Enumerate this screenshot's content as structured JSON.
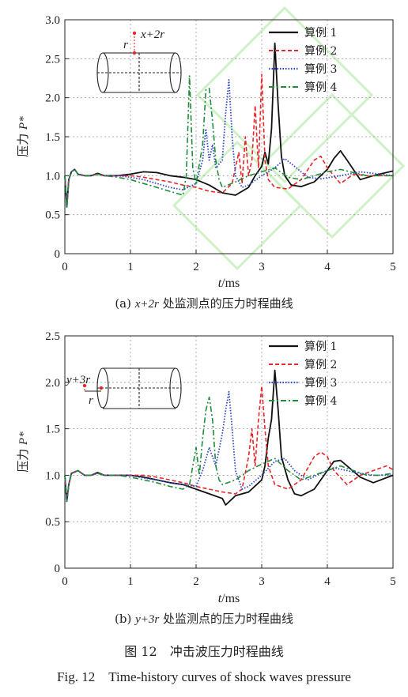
{
  "figure": {
    "caption_cn": "图 12　冲击波压力时程曲线",
    "caption_en": "Fig. 12　Time-history curves of shock waves pressure"
  },
  "colors": {
    "case1": "#111111",
    "case2": "#e8262b",
    "case3": "#2b47c8",
    "case4": "#1f8c3a",
    "watermark": "#c9f0c2"
  },
  "chart_data": [
    {
      "type": "line",
      "subtitle_prefix": "(a) ",
      "subtitle_var": "x+2r",
      "subtitle_rest": " 处监测点的压力时程曲线",
      "xlabel_var": "t",
      "xlabel_unit": "/ms",
      "ylabel_cn": "压力 ",
      "ylabel_var": "P*",
      "xlim": [
        0,
        5
      ],
      "ylim": [
        0,
        3
      ],
      "xticks": [
        0,
        1,
        2,
        3,
        4,
        5
      ],
      "yticks": [
        0,
        0.5,
        1.0,
        1.5,
        2.0,
        2.5,
        3.0
      ],
      "ytick_labels": [
        "0",
        "0.5",
        "1.0",
        "1.5",
        "2.0",
        "2.5",
        "3.0"
      ],
      "grid": true,
      "legend_position": "top-right",
      "inset_labels": {
        "point": "x+2r",
        "radius": "r"
      },
      "series": [
        {
          "name": "算例 1",
          "x": [
            0,
            0.03,
            0.06,
            0.1,
            0.15,
            0.2,
            0.3,
            0.4,
            0.5,
            0.6,
            0.8,
            1.0,
            1.2,
            1.4,
            1.6,
            1.8,
            2.0,
            2.2,
            2.4,
            2.6,
            2.8,
            2.9,
            3.0,
            3.05,
            3.1,
            3.15,
            3.2,
            3.25,
            3.3,
            3.35,
            3.45,
            3.6,
            3.8,
            4.0,
            4.1,
            4.2,
            4.3,
            4.5,
            4.7,
            5.0
          ],
          "y": [
            1.0,
            0.6,
            0.95,
            1.05,
            1.08,
            1.02,
            1.0,
            1.0,
            1.03,
            1.0,
            1.0,
            1.02,
            1.05,
            1.04,
            1.0,
            0.98,
            0.95,
            0.88,
            0.78,
            0.75,
            0.85,
            1.0,
            1.12,
            1.3,
            1.15,
            1.6,
            2.7,
            1.9,
            1.25,
            1.0,
            0.88,
            0.86,
            0.92,
            1.08,
            1.22,
            1.32,
            1.2,
            0.95,
            1.0,
            1.06
          ]
        },
        {
          "name": "算例 2",
          "x": [
            0,
            0.03,
            0.06,
            0.1,
            0.15,
            0.2,
            0.3,
            0.4,
            0.5,
            0.6,
            0.8,
            1.0,
            1.2,
            1.4,
            1.6,
            1.8,
            2.0,
            2.2,
            2.4,
            2.55,
            2.65,
            2.7,
            2.75,
            2.8,
            2.85,
            2.9,
            2.95,
            3.0,
            3.05,
            3.1,
            3.2,
            3.4,
            3.6,
            3.8,
            3.9,
            4.0,
            4.2,
            4.4,
            4.6,
            4.8,
            5.0
          ],
          "y": [
            1.0,
            0.62,
            0.95,
            1.05,
            1.08,
            1.02,
            1.0,
            1.0,
            1.02,
            1.0,
            1.0,
            1.0,
            0.98,
            0.95,
            0.92,
            0.88,
            0.85,
            0.8,
            0.78,
            0.9,
            1.3,
            0.9,
            1.5,
            1.0,
            1.2,
            1.9,
            1.1,
            2.3,
            1.2,
            0.95,
            0.85,
            0.83,
            0.95,
            1.2,
            1.25,
            1.1,
            0.9,
            1.02,
            1.0,
            1.0,
            1.0
          ]
        },
        {
          "name": "算例 3",
          "x": [
            0,
            0.03,
            0.06,
            0.1,
            0.15,
            0.2,
            0.3,
            0.4,
            0.5,
            0.6,
            0.8,
            1.0,
            1.2,
            1.4,
            1.6,
            1.8,
            2.0,
            2.1,
            2.15,
            2.2,
            2.25,
            2.3,
            2.4,
            2.45,
            2.5,
            2.55,
            2.6,
            2.7,
            2.8,
            3.0,
            3.2,
            3.35,
            3.5,
            3.7,
            3.9,
            4.2,
            4.5,
            4.8,
            5.0
          ],
          "y": [
            1.0,
            0.6,
            0.95,
            1.05,
            1.08,
            1.02,
            1.0,
            1.0,
            1.02,
            1.0,
            1.0,
            0.98,
            0.95,
            0.9,
            0.85,
            0.82,
            0.9,
            1.2,
            1.6,
            1.2,
            1.4,
            1.1,
            1.2,
            1.8,
            2.23,
            1.5,
            1.0,
            0.85,
            0.88,
            1.0,
            1.1,
            1.22,
            1.12,
            0.98,
            0.96,
            1.0,
            1.05,
            1.02,
            1.0
          ]
        },
        {
          "name": "算例 4",
          "x": [
            0,
            0.03,
            0.06,
            0.1,
            0.15,
            0.2,
            0.3,
            0.4,
            0.5,
            0.6,
            0.8,
            1.0,
            1.2,
            1.4,
            1.6,
            1.8,
            1.85,
            1.9,
            1.95,
            2.0,
            2.1,
            2.15,
            2.2,
            2.25,
            2.3,
            2.35,
            2.4,
            2.6,
            2.8,
            3.0,
            3.2,
            3.4,
            3.6,
            3.8,
            4.0,
            4.2,
            4.4,
            4.6,
            4.8,
            5.0
          ],
          "y": [
            1.0,
            0.6,
            0.95,
            1.05,
            1.08,
            1.02,
            1.0,
            1.0,
            1.02,
            1.0,
            0.98,
            0.95,
            0.9,
            0.85,
            0.8,
            0.75,
            1.0,
            2.28,
            1.1,
            0.9,
            1.4,
            2.1,
            2.12,
            1.7,
            1.2,
            0.95,
            0.85,
            0.92,
            1.0,
            1.05,
            1.1,
            0.98,
            0.95,
            1.0,
            1.05,
            1.08,
            1.04,
            1.0,
            1.0,
            1.0
          ]
        }
      ]
    },
    {
      "type": "line",
      "subtitle_prefix": "(b) ",
      "subtitle_var": "y+3r",
      "subtitle_rest": " 处监测点的压力时程曲线",
      "xlabel_var": "t",
      "xlabel_unit": "/ms",
      "ylabel_cn": "压力 ",
      "ylabel_var": "P*",
      "xlim": [
        0,
        5
      ],
      "ylim": [
        0,
        2.5
      ],
      "xticks": [
        0,
        1,
        2,
        3,
        4,
        5
      ],
      "yticks": [
        0,
        0.5,
        1.0,
        1.5,
        2.0,
        2.5
      ],
      "ytick_labels": [
        "0",
        "0.5",
        "1.0",
        "1.5",
        "2.0",
        "2.5"
      ],
      "grid": true,
      "legend_position": "top-right",
      "inset_labels": {
        "point": "y+3r",
        "radius": "r"
      },
      "series": [
        {
          "name": "算例 1",
          "x": [
            0,
            0.03,
            0.06,
            0.1,
            0.2,
            0.3,
            0.4,
            0.5,
            0.6,
            0.8,
            1.0,
            1.2,
            1.4,
            1.6,
            1.8,
            2.0,
            2.2,
            2.4,
            2.45,
            2.6,
            2.8,
            3.0,
            3.05,
            3.1,
            3.15,
            3.2,
            3.25,
            3.3,
            3.4,
            3.5,
            3.6,
            3.8,
            4.0,
            4.1,
            4.2,
            4.3,
            4.5,
            4.7,
            5.0
          ],
          "y": [
            1.0,
            0.72,
            0.9,
            1.02,
            1.05,
            1.0,
            1.0,
            1.03,
            1.0,
            1.0,
            1.0,
            0.98,
            0.95,
            0.92,
            0.9,
            0.85,
            0.8,
            0.75,
            0.68,
            0.78,
            0.82,
            0.95,
            1.1,
            1.4,
            1.6,
            2.13,
            1.7,
            1.2,
            0.95,
            0.8,
            0.78,
            0.85,
            1.05,
            1.15,
            1.16,
            1.1,
            0.98,
            0.92,
            1.0
          ]
        },
        {
          "name": "算例 2",
          "x": [
            0,
            0.03,
            0.06,
            0.1,
            0.2,
            0.3,
            0.4,
            0.5,
            0.6,
            0.8,
            1.0,
            1.2,
            1.4,
            1.6,
            1.8,
            2.0,
            2.2,
            2.4,
            2.6,
            2.7,
            2.8,
            2.85,
            2.9,
            2.95,
            3.0,
            3.05,
            3.1,
            3.2,
            3.4,
            3.6,
            3.8,
            3.9,
            4.0,
            4.1,
            4.3,
            4.5,
            4.7,
            4.9,
            5.0
          ],
          "y": [
            1.0,
            0.72,
            0.9,
            1.02,
            1.05,
            1.0,
            1.0,
            1.02,
            1.0,
            1.0,
            1.0,
            1.0,
            0.98,
            0.95,
            0.92,
            0.88,
            0.85,
            0.82,
            0.8,
            0.85,
            1.2,
            1.5,
            1.1,
            1.6,
            1.96,
            1.5,
            1.1,
            0.9,
            0.85,
            0.95,
            1.2,
            1.25,
            1.2,
            1.05,
            0.9,
            1.0,
            1.05,
            1.1,
            1.06
          ]
        },
        {
          "name": "算例 3",
          "x": [
            0,
            0.03,
            0.06,
            0.1,
            0.2,
            0.3,
            0.4,
            0.5,
            0.6,
            0.8,
            1.0,
            1.2,
            1.4,
            1.6,
            1.8,
            2.0,
            2.1,
            2.2,
            2.3,
            2.4,
            2.45,
            2.5,
            2.55,
            2.6,
            2.7,
            2.8,
            3.0,
            3.2,
            3.35,
            3.5,
            3.7,
            3.9,
            4.1,
            4.3,
            4.5,
            4.7,
            5.0
          ],
          "y": [
            1.0,
            0.72,
            0.9,
            1.02,
            1.05,
            1.0,
            1.0,
            1.02,
            1.0,
            1.0,
            1.0,
            0.97,
            0.95,
            0.92,
            0.9,
            0.88,
            1.05,
            1.3,
            1.1,
            1.45,
            1.7,
            1.9,
            1.5,
            1.05,
            0.85,
            0.88,
            1.0,
            1.15,
            1.18,
            1.05,
            0.95,
            1.02,
            1.08,
            1.05,
            1.02,
            1.0,
            1.0
          ]
        },
        {
          "name": "算例 4",
          "x": [
            0,
            0.03,
            0.06,
            0.1,
            0.2,
            0.3,
            0.4,
            0.5,
            0.6,
            0.8,
            1.0,
            1.2,
            1.4,
            1.6,
            1.8,
            1.9,
            1.95,
            2.0,
            2.05,
            2.1,
            2.15,
            2.2,
            2.25,
            2.3,
            2.35,
            2.4,
            2.6,
            2.8,
            3.0,
            3.2,
            3.4,
            3.6,
            3.8,
            4.0,
            4.2,
            4.4,
            4.6,
            4.8,
            5.0
          ],
          "y": [
            1.0,
            0.72,
            0.9,
            1.02,
            1.05,
            1.0,
            1.0,
            1.02,
            1.0,
            1.0,
            0.98,
            0.95,
            0.92,
            0.88,
            0.85,
            0.9,
            1.1,
            1.3,
            1.0,
            1.4,
            1.7,
            1.84,
            1.6,
            1.1,
            0.95,
            0.9,
            0.95,
            1.05,
            1.12,
            1.18,
            1.05,
            0.95,
            1.0,
            1.05,
            1.1,
            1.05,
            1.0,
            1.0,
            1.02
          ]
        }
      ]
    }
  ]
}
